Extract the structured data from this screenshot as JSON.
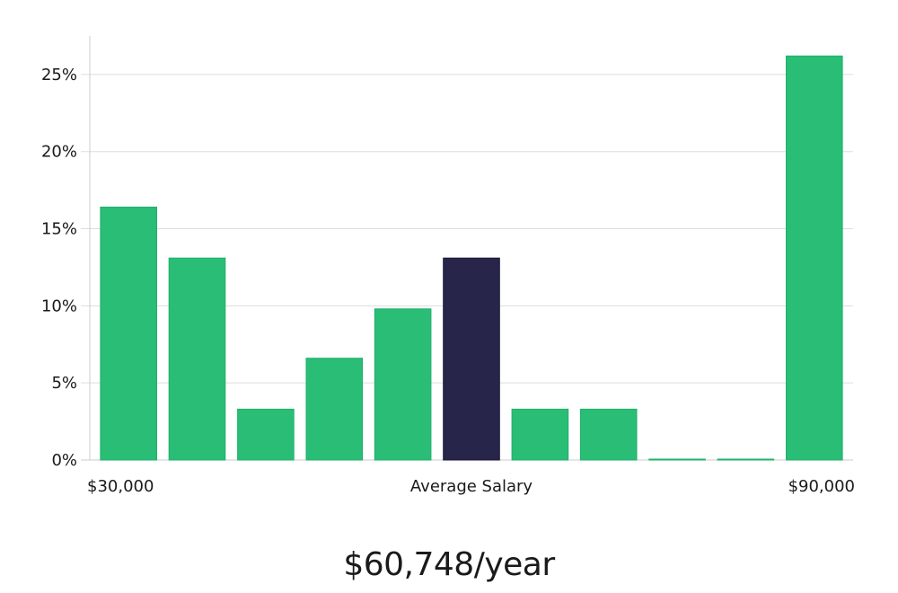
{
  "chart_data": {
    "type": "bar",
    "title": "",
    "xlabel": "",
    "ylabel": "",
    "values": [
      16.4,
      13.1,
      3.3,
      6.6,
      9.8,
      13.1,
      3.3,
      3.3,
      0.0,
      0.0,
      26.2
    ],
    "highlight_index": 5,
    "y_unit": "%",
    "ylim": [
      0,
      27.5
    ],
    "y_ticks": [
      0,
      5,
      10,
      15,
      20,
      25
    ],
    "y_tick_labels": [
      "0%",
      "5%",
      "10%",
      "15%",
      "20%",
      "25%"
    ],
    "x_labels": {
      "left": "$30,000",
      "center": "Average Salary",
      "right": "$90,000"
    },
    "grid": true,
    "colors": {
      "bar": "#2abd76",
      "highlight": "#28254a",
      "grid": "#dddddd",
      "axis": "#cccccc"
    }
  },
  "summary": {
    "salary": "$60,748/year"
  }
}
